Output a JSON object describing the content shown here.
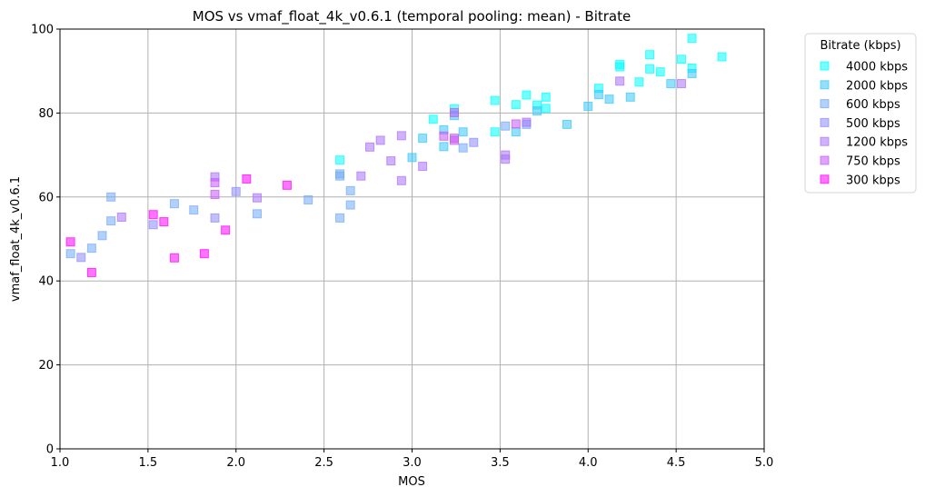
{
  "chart_data": {
    "type": "scatter",
    "title": "MOS vs vmaf_float_4k_v0.6.1 (temporal pooling: mean) - Bitrate",
    "xlabel": "MOS",
    "ylabel": "vmaf_float_4k_v0.6.1",
    "xlim": [
      1.0,
      5.0
    ],
    "ylim": [
      0,
      100
    ],
    "x_ticks": [
      "1.0",
      "1.5",
      "2.0",
      "2.5",
      "3.0",
      "3.5",
      "4.0",
      "4.5",
      "5.0"
    ],
    "y_ticks": [
      "0",
      "20",
      "40",
      "60",
      "80",
      "100"
    ],
    "grid": true,
    "marker": "square",
    "legend": {
      "title": "Bitrate (kbps)",
      "placement": "outside-right-top"
    },
    "series": [
      {
        "name": "4000 kbps",
        "color": "#00ffff",
        "points": [
          [
            2.59,
            68.8
          ],
          [
            3.12,
            78.5
          ],
          [
            3.24,
            81.0
          ],
          [
            3.47,
            83.0
          ],
          [
            3.47,
            75.5
          ],
          [
            3.59,
            82.0
          ],
          [
            3.65,
            84.3
          ],
          [
            3.71,
            81.9
          ],
          [
            3.76,
            83.8
          ],
          [
            3.76,
            81.1
          ],
          [
            4.06,
            85.9
          ],
          [
            4.18,
            91.6
          ],
          [
            4.18,
            91.0
          ],
          [
            4.29,
            87.4
          ],
          [
            4.35,
            93.9
          ],
          [
            4.35,
            90.5
          ],
          [
            4.41,
            89.8
          ],
          [
            4.53,
            92.8
          ],
          [
            4.59,
            97.8
          ],
          [
            4.59,
            90.7
          ],
          [
            4.76,
            93.4
          ]
        ]
      },
      {
        "name": "2000 kbps",
        "color": "#38c7f8",
        "points": [
          [
            3.0,
            69.4
          ],
          [
            3.06,
            74.0
          ],
          [
            3.18,
            76.0
          ],
          [
            3.18,
            72.0
          ],
          [
            3.24,
            79.4
          ],
          [
            3.29,
            75.5
          ],
          [
            3.59,
            75.5
          ],
          [
            3.71,
            80.5
          ],
          [
            3.88,
            77.3
          ],
          [
            4.0,
            81.6
          ],
          [
            4.06,
            84.4
          ],
          [
            4.12,
            83.3
          ],
          [
            4.24,
            83.8
          ],
          [
            4.47,
            87.0
          ],
          [
            4.59,
            89.4
          ]
        ]
      },
      {
        "name": "600 kbps",
        "color": "#71a9f8",
        "points": [
          [
            1.06,
            46.5
          ],
          [
            1.18,
            47.8
          ],
          [
            1.24,
            50.8
          ],
          [
            1.29,
            54.3
          ],
          [
            1.29,
            60.0
          ],
          [
            1.65,
            58.4
          ],
          [
            1.76,
            56.9
          ],
          [
            2.12,
            56.0
          ],
          [
            2.41,
            59.3
          ],
          [
            2.59,
            55.0
          ],
          [
            2.59,
            65.5
          ],
          [
            2.59,
            65.0
          ],
          [
            2.65,
            61.5
          ],
          [
            2.65,
            58.1
          ],
          [
            3.29,
            71.7
          ],
          [
            3.53,
            76.9
          ],
          [
            3.65,
            77.3
          ]
        ]
      },
      {
        "name": "500 kbps",
        "color": "#8d8bf8",
        "points": [
          [
            1.12,
            45.6
          ],
          [
            1.53,
            53.4
          ],
          [
            1.88,
            55.0
          ],
          [
            2.0,
            61.3
          ],
          [
            3.35,
            73.0
          ]
        ]
      },
      {
        "name": "1200 kbps",
        "color": "#aa71f8",
        "points": [
          [
            1.35,
            55.2
          ],
          [
            1.88,
            64.8
          ],
          [
            2.12,
            59.8
          ],
          [
            2.71,
            65.0
          ],
          [
            2.76,
            71.9
          ],
          [
            2.82,
            73.5
          ],
          [
            2.88,
            68.6
          ],
          [
            2.94,
            74.6
          ],
          [
            2.94,
            63.9
          ],
          [
            3.06,
            67.3
          ],
          [
            3.53,
            70.0
          ],
          [
            3.53,
            69.0
          ],
          [
            3.65,
            77.8
          ],
          [
            4.18,
            87.6
          ],
          [
            4.53,
            87.0
          ]
        ]
      },
      {
        "name": "750 kbps",
        "color": "#c655f8",
        "points": [
          [
            1.88,
            63.4
          ],
          [
            1.88,
            60.6
          ],
          [
            3.18,
            74.5
          ],
          [
            3.24,
            80.1
          ],
          [
            3.24,
            74.0
          ],
          [
            3.24,
            73.5
          ],
          [
            3.59,
            77.4
          ]
        ]
      },
      {
        "name": "300 kbps",
        "color": "#ff00ff",
        "points": [
          [
            1.06,
            49.3
          ],
          [
            1.18,
            42.0
          ],
          [
            1.53,
            55.8
          ],
          [
            1.59,
            54.1
          ],
          [
            1.65,
            45.5
          ],
          [
            1.82,
            46.5
          ],
          [
            1.94,
            52.1
          ],
          [
            2.06,
            64.3
          ],
          [
            2.29,
            62.8
          ]
        ]
      }
    ]
  }
}
